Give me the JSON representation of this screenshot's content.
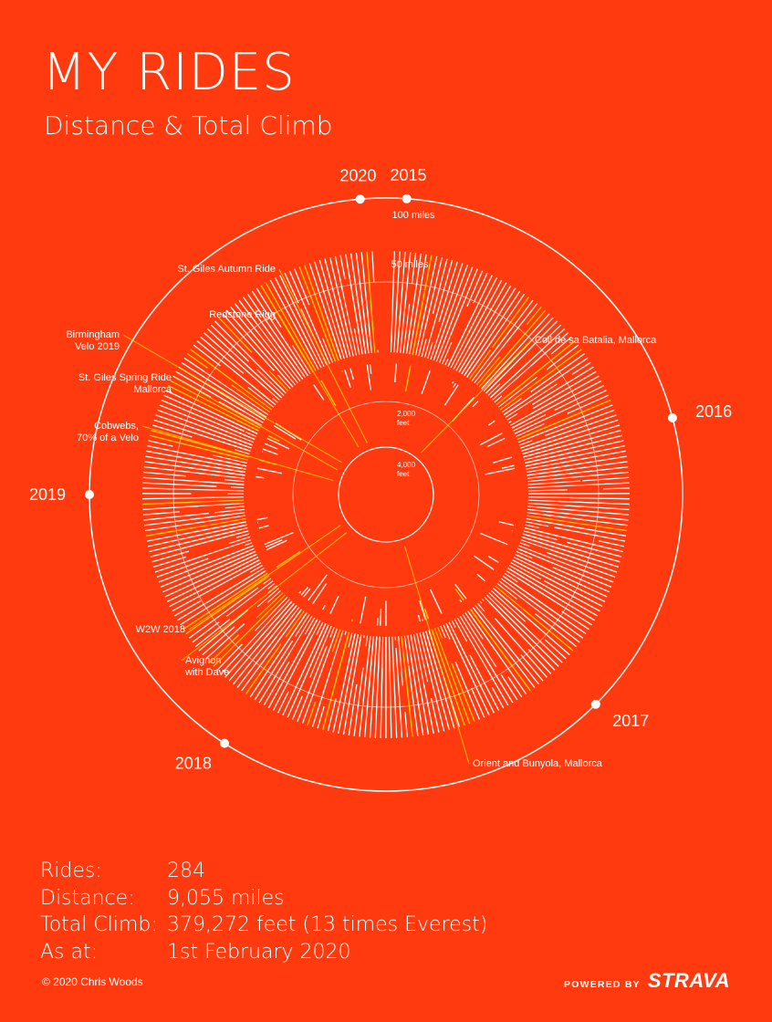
{
  "header": {
    "title": "MY RIDES",
    "subtitle": "Distance & Total Climb"
  },
  "colors": {
    "background": "#ff3a0f",
    "bars": "#ffffff",
    "highlight": "#ffcc00"
  },
  "chart_data": {
    "type": "radial-bar",
    "distance_unit": "miles",
    "climb_unit": "feet",
    "year_markers": [
      {
        "year": "2015",
        "angle_deg": 4
      },
      {
        "year": "2016",
        "angle_deg": 75
      },
      {
        "year": "2017",
        "angle_deg": 135
      },
      {
        "year": "2018",
        "angle_deg": 213
      },
      {
        "year": "2019",
        "angle_deg": 270
      },
      {
        "year": "2020",
        "angle_deg": 355
      }
    ],
    "distance_rings": [
      {
        "label": "100 miles",
        "value": 100
      },
      {
        "label": "50 miles",
        "value": 50
      }
    ],
    "climb_rings": [
      {
        "label": "2,000\nfeet",
        "value": 2000
      },
      {
        "label": "4,000\nfeet",
        "value": 4000
      }
    ],
    "annotations": [
      {
        "text": "St. Giles Autumn Ride",
        "angle_deg": 340
      },
      {
        "text": "Redstone Rigg",
        "angle_deg": 330
      },
      {
        "text": "Birmingham\nVelo 2019",
        "angle_deg": 306
      },
      {
        "text": "St. Giles Spring Ride\nMallorca",
        "angle_deg": 297
      },
      {
        "text": "Cobwebs,\n70% of a Velo",
        "angle_deg": 285
      },
      {
        "text": "Coll de sa Batalia, Mallorca",
        "angle_deg": 40
      },
      {
        "text": "W2W 2018",
        "angle_deg": 236
      },
      {
        "text": "Avignon\nwith Dave",
        "angle_deg": 226
      },
      {
        "text": "Orient and Bunyola, Mallorca",
        "angle_deg": 160
      }
    ]
  },
  "stats": [
    {
      "label": "Rides:",
      "value": "284"
    },
    {
      "label": "Distance:",
      "value": "9,055 miles"
    },
    {
      "label": "Total Climb:",
      "value": "379,272 feet (13 times Everest)"
    },
    {
      "label": "As at:",
      "value": "1st February 2020"
    }
  ],
  "footer": {
    "copyright": "© 2020 Chris Woods",
    "powered_by": "POWERED BY",
    "brand": "STRAVA"
  }
}
